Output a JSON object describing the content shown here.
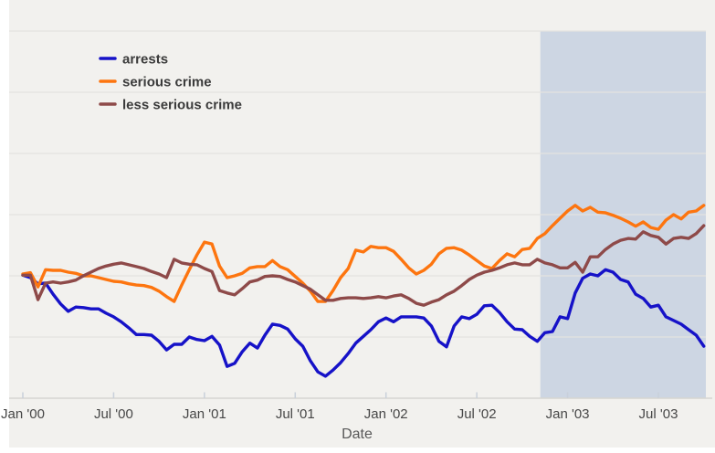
{
  "chart_data": {
    "type": "line",
    "title": "",
    "xlabel": "Date",
    "ylabel": "",
    "x_axis": {
      "unit": "months since Jan 2000",
      "start": 0,
      "step": 0.5,
      "tick_months": [
        0,
        6,
        12,
        18,
        24,
        30,
        36,
        42
      ],
      "tick_labels": [
        "Jan '00",
        "Jul '00",
        "Jan '01",
        "Jul '01",
        "Jan '02",
        "Jul '02",
        "Jan '03",
        "Jul '03"
      ]
    },
    "y_axis": {
      "unit": "index, Jan 2000 = 100 (no y tick labels shown; estimated from gridlines, 1 gridline = 10)",
      "lim": [
        80,
        140
      ],
      "gridline_values": [
        90,
        100,
        110,
        120,
        130,
        140
      ],
      "tick_labels_shown": false
    },
    "legend": {
      "position": "top-left-inside",
      "labels": [
        "arrests",
        "serious crime",
        "less serious crime"
      ]
    },
    "shaded_region": {
      "start_month": 34.2,
      "end_month": 45.1,
      "note": "highlighted period approx Nov '02 through Oct '03"
    },
    "series": [
      {
        "name": "arrests",
        "color": "#1612c8",
        "values": [
          100.1,
          99.7,
          98.7,
          98.8,
          97.0,
          95.4,
          94.2,
          94.9,
          94.8,
          94.6,
          94.6,
          93.9,
          93.3,
          92.5,
          91.5,
          90.4,
          90.4,
          90.3,
          89.3,
          87.9,
          88.8,
          88.8,
          90.0,
          89.6,
          89.4,
          90.1,
          88.7,
          85.2,
          85.7,
          87.6,
          89.0,
          88.2,
          90.3,
          92.1,
          91.9,
          91.3,
          89.7,
          88.5,
          86.1,
          84.3,
          83.6,
          84.6,
          85.8,
          87.3,
          89.0,
          90.1,
          91.2,
          92.5,
          93.1,
          92.5,
          93.3,
          93.3,
          93.3,
          93.1,
          91.8,
          89.3,
          88.4,
          91.8,
          93.3,
          93.0,
          93.7,
          95.1,
          95.2,
          94.0,
          92.5,
          91.3,
          91.2,
          90.1,
          89.3,
          90.7,
          90.9,
          93.3,
          93.0,
          97.2,
          99.6,
          100.3,
          100.0,
          101.0,
          100.6,
          99.4,
          99.0,
          97.0,
          96.3,
          94.9,
          95.2,
          93.3,
          92.7,
          92.1,
          91.2,
          90.3,
          88.5
        ]
      },
      {
        "name": "serious crime",
        "color": "#fd750f",
        "values": [
          100.3,
          100.5,
          98.2,
          101.0,
          100.9,
          100.9,
          100.6,
          100.4,
          100.0,
          100.0,
          99.7,
          99.4,
          99.1,
          99.0,
          98.7,
          98.5,
          98.4,
          98.1,
          97.5,
          96.6,
          95.8,
          98.5,
          101.0,
          103.4,
          105.5,
          105.2,
          101.6,
          99.7,
          100.0,
          100.4,
          101.3,
          101.5,
          101.5,
          102.5,
          101.5,
          101.0,
          99.9,
          98.8,
          97.5,
          95.8,
          95.8,
          97.6,
          99.7,
          101.2,
          104.2,
          103.9,
          104.8,
          104.6,
          104.6,
          104.0,
          102.7,
          101.3,
          100.3,
          100.9,
          101.9,
          103.6,
          104.5,
          104.6,
          104.2,
          103.4,
          102.5,
          101.6,
          101.2,
          102.5,
          103.6,
          103.1,
          104.3,
          104.5,
          106.1,
          106.9,
          108.2,
          109.4,
          110.6,
          111.5,
          110.6,
          111.2,
          110.4,
          110.3,
          109.9,
          109.4,
          108.8,
          108.1,
          108.8,
          107.9,
          107.6,
          109.1,
          110.0,
          109.3,
          110.4,
          110.6,
          111.5
        ]
      },
      {
        "name": "less serious crime",
        "color": "#8e4a49",
        "values": [
          100.1,
          100.1,
          96.1,
          98.8,
          99.0,
          98.8,
          99.0,
          99.3,
          100.0,
          100.6,
          101.2,
          101.6,
          101.9,
          102.1,
          101.8,
          101.5,
          101.2,
          100.7,
          100.3,
          99.7,
          102.7,
          102.1,
          101.9,
          101.8,
          101.2,
          100.7,
          97.6,
          97.2,
          96.9,
          97.9,
          99.0,
          99.3,
          99.9,
          100.0,
          99.9,
          99.4,
          99.0,
          98.4,
          97.8,
          96.9,
          96.0,
          96.0,
          96.3,
          96.4,
          96.4,
          96.3,
          96.4,
          96.6,
          96.4,
          96.7,
          96.9,
          96.3,
          95.5,
          95.2,
          95.7,
          96.1,
          96.9,
          97.5,
          98.4,
          99.4,
          100.1,
          100.6,
          100.9,
          101.3,
          101.8,
          102.1,
          101.8,
          101.8,
          102.7,
          102.1,
          101.8,
          101.3,
          101.3,
          102.2,
          100.6,
          103.1,
          103.1,
          104.3,
          105.2,
          105.8,
          106.1,
          106.0,
          107.2,
          106.6,
          106.3,
          105.2,
          106.1,
          106.3,
          106.1,
          106.9,
          108.2
        ]
      }
    ]
  },
  "colors": {
    "background": "#f2f1ee",
    "left_strip": "#ffffff",
    "gridline": "#e4e3e0",
    "axis_line": "#d6d5d2",
    "tick_mark": "#c9d0da",
    "tick_label": "#474747",
    "axis_title": "#585858",
    "legend_text": "#3b3b3b",
    "shade": "#cdd6e3",
    "arrests": "#1612c8",
    "serious_crime": "#fd750f",
    "less_serious_crime": "#8e4a49"
  }
}
